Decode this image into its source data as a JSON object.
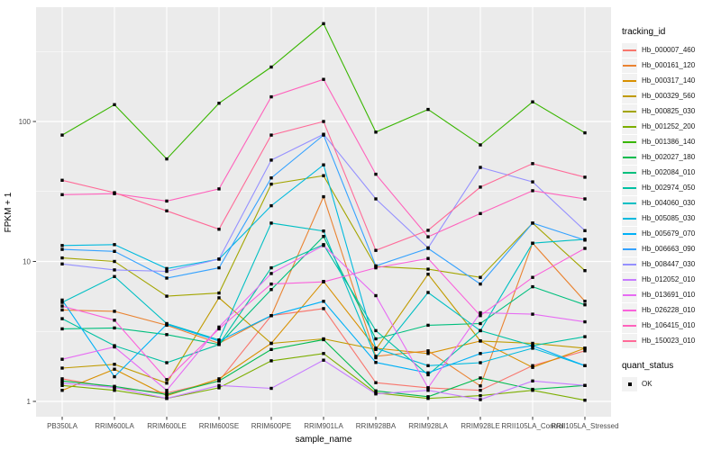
{
  "chart_data": {
    "type": "line",
    "title": "",
    "xlabel": "sample_name",
    "ylabel": "FPKM + 1",
    "yscale": "log10",
    "yticks": [
      1,
      10,
      100
    ],
    "ytick_labels": [
      "1",
      "10",
      "100"
    ],
    "yminor": [
      3.162,
      31.62,
      316.2
    ],
    "ylim": [
      0.8,
      630
    ],
    "grid": "white-on-gray-panel",
    "legend_position": "right",
    "point_shape": "filled-square",
    "point_color": "#000000",
    "x_categories": [
      "PB350LA",
      "RRIM600LA",
      "RRIM600LE",
      "RRIM600SE",
      "RRIM600PE",
      "RRIM901LA",
      "RRIM928BA",
      "RRIM928LA",
      "RRIM928LE",
      "RRII105LA_Control",
      "RRII105LA_Stressed"
    ],
    "legend_title": "tracking_id",
    "legend2_title": "quant_status",
    "legend2_items": [
      "OK"
    ],
    "series": [
      {
        "name": "Hb_000007_460",
        "color": "#F8766D",
        "values": [
          1.45,
          1.25,
          1.15,
          1.4,
          4.1,
          4.6,
          1.36,
          1.25,
          1.2,
          1.8,
          2.3
        ]
      },
      {
        "name": "Hb_000161_120",
        "color": "#EA8331",
        "values": [
          4.5,
          4.4,
          3.5,
          2.6,
          4.1,
          29,
          2.1,
          2.3,
          1.29,
          13.5,
          5.2
        ]
      },
      {
        "name": "Hb_000317_140",
        "color": "#D89000",
        "values": [
          1.2,
          1.7,
          1.1,
          1.45,
          2.6,
          7.2,
          2.4,
          2.2,
          2.7,
          1.75,
          2.4
        ]
      },
      {
        "name": "Hb_000329_560",
        "color": "#C09B00",
        "values": [
          1.73,
          1.84,
          1.35,
          5.5,
          2.6,
          2.8,
          2.35,
          8.1,
          2.7,
          2.6,
          2.4
        ]
      },
      {
        "name": "Hb_000825_030",
        "color": "#A3A500",
        "values": [
          10.6,
          10,
          5.65,
          5.95,
          35.7,
          41,
          9.2,
          8.8,
          7.7,
          18.8,
          8.6
        ]
      },
      {
        "name": "Hb_001252_200",
        "color": "#7CAE00",
        "values": [
          1.3,
          1.2,
          1.05,
          1.25,
          1.95,
          2.2,
          1.15,
          1.05,
          1.1,
          1.2,
          1.02
        ]
      },
      {
        "name": "Hb_001386_140",
        "color": "#39B600",
        "values": [
          80,
          132,
          54,
          135,
          245,
          500,
          84,
          122,
          68,
          138,
          83
        ]
      },
      {
        "name": "Hb_002027_180",
        "color": "#00BB4E",
        "values": [
          1.4,
          1.28,
          1.12,
          1.4,
          2.35,
          2.76,
          1.19,
          1.08,
          1.47,
          1.22,
          1.3
        ]
      },
      {
        "name": "Hb_002084_010",
        "color": "#00BF7D",
        "values": [
          3.3,
          3.35,
          3.0,
          2.55,
          6.3,
          15.1,
          2.8,
          3.5,
          3.6,
          6.6,
          4.9
        ]
      },
      {
        "name": "Hb_002974_050",
        "color": "#00C1A3",
        "values": [
          3.9,
          2.5,
          1.89,
          2.55,
          9.0,
          13.2,
          3.2,
          1.55,
          3.2,
          2.5,
          2.9
        ]
      },
      {
        "name": "Hb_004060_030",
        "color": "#00BFC4",
        "values": [
          5.1,
          7.8,
          3.6,
          2.75,
          18.8,
          16.5,
          2.05,
          6.0,
          3.2,
          13.5,
          14.4
        ]
      },
      {
        "name": "Hb_005085_030",
        "color": "#00BADE",
        "values": [
          13,
          13.2,
          8.9,
          10.4,
          25,
          49,
          2.4,
          1.8,
          1.89,
          2.4,
          1.8
        ]
      },
      {
        "name": "Hb_005679_070",
        "color": "#00B0F6",
        "values": [
          5.3,
          1.5,
          3.55,
          2.7,
          4.1,
          5.19,
          1.9,
          1.6,
          2.2,
          2.5,
          1.8
        ]
      },
      {
        "name": "Hb_006663_090",
        "color": "#35A2FF",
        "values": [
          12.2,
          11.8,
          7.6,
          9.0,
          39.5,
          80,
          9.3,
          12.4,
          6.9,
          18.8,
          14.2
        ]
      },
      {
        "name": "Hb_008447_030",
        "color": "#9590FF",
        "values": [
          9.6,
          8.7,
          8.5,
          10.4,
          53,
          81,
          28,
          12.5,
          47,
          37,
          16.6
        ]
      },
      {
        "name": "Hb_012052_010",
        "color": "#C77CFF",
        "values": [
          1.35,
          1.26,
          1.05,
          1.3,
          1.24,
          1.97,
          1.13,
          1.2,
          1.03,
          1.4,
          1.3
        ]
      },
      {
        "name": "Hb_013691_010",
        "color": "#E76BF3",
        "values": [
          2.0,
          2.45,
          1.2,
          3.4,
          8.2,
          13,
          5.7,
          1.25,
          4.3,
          4.2,
          3.7
        ]
      },
      {
        "name": "Hb_026228_010",
        "color": "#FA62DB",
        "values": [
          4.8,
          3.8,
          1.43,
          3.3,
          6.9,
          7.15,
          9.0,
          10.5,
          4.1,
          7.7,
          12.4
        ]
      },
      {
        "name": "Hb_106415_010",
        "color": "#FF62BC",
        "values": [
          30,
          30.5,
          27,
          33,
          150,
          200,
          42,
          15,
          22,
          32,
          28
        ]
      },
      {
        "name": "Hb_150023_010",
        "color": "#FF6A98",
        "values": [
          38,
          31,
          23,
          17,
          80,
          100,
          12,
          16.7,
          34,
          50,
          40
        ]
      }
    ]
  }
}
